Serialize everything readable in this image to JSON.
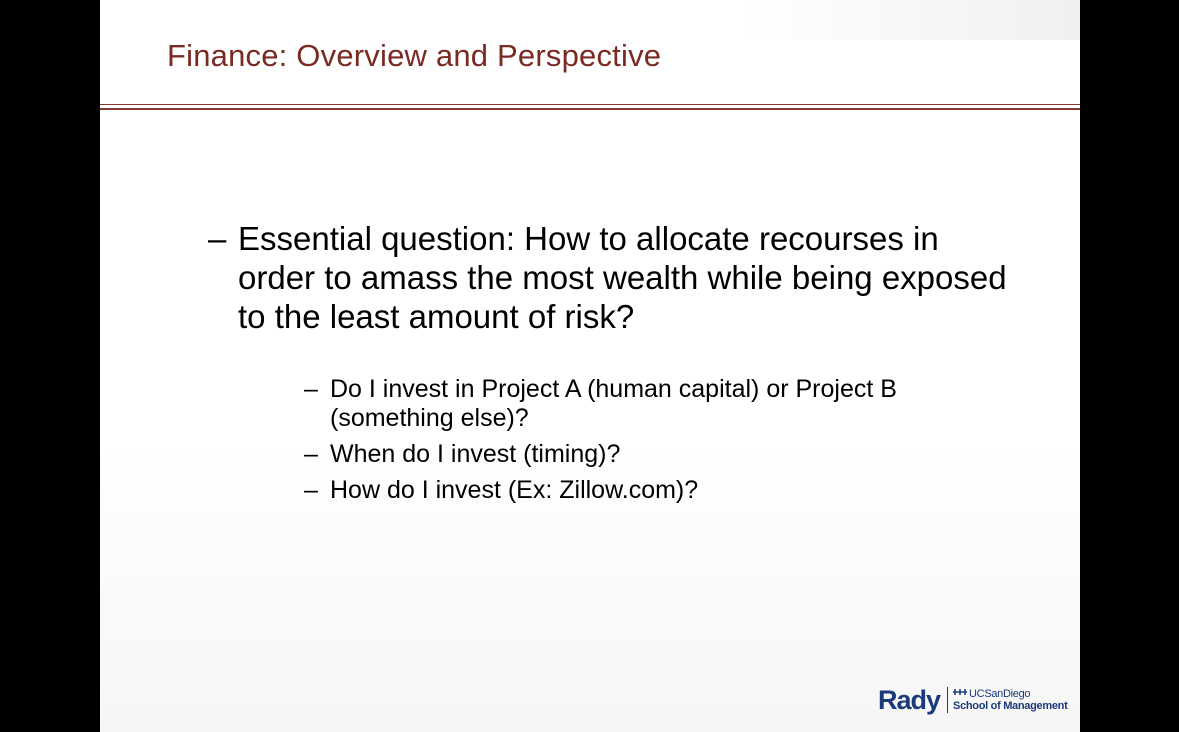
{
  "slide": {
    "title": "Finance: Overview and Perspective",
    "main_bullet": {
      "marker": "–",
      "text": "Essential question: How to allocate recourses in order to amass the most wealth while being exposed to the least amount of risk?"
    },
    "sub_bullets": [
      {
        "marker": "–",
        "text": "Do I invest in Project A (human capital) or Project B (something else)?"
      },
      {
        "marker": "–",
        "text": "When do I invest (timing)?"
      },
      {
        "marker": "–",
        "text": "How do I invest (Ex: Zillow.com)?"
      }
    ]
  },
  "logo": {
    "primary": "Rady",
    "university": "UCSanDiego",
    "school": "School of Management",
    "icon": "trident-icon"
  },
  "colors": {
    "title": "#7a2a22",
    "rule": "#8a3a30",
    "logo": "#1a3a7a",
    "letterbox": "#000000"
  }
}
